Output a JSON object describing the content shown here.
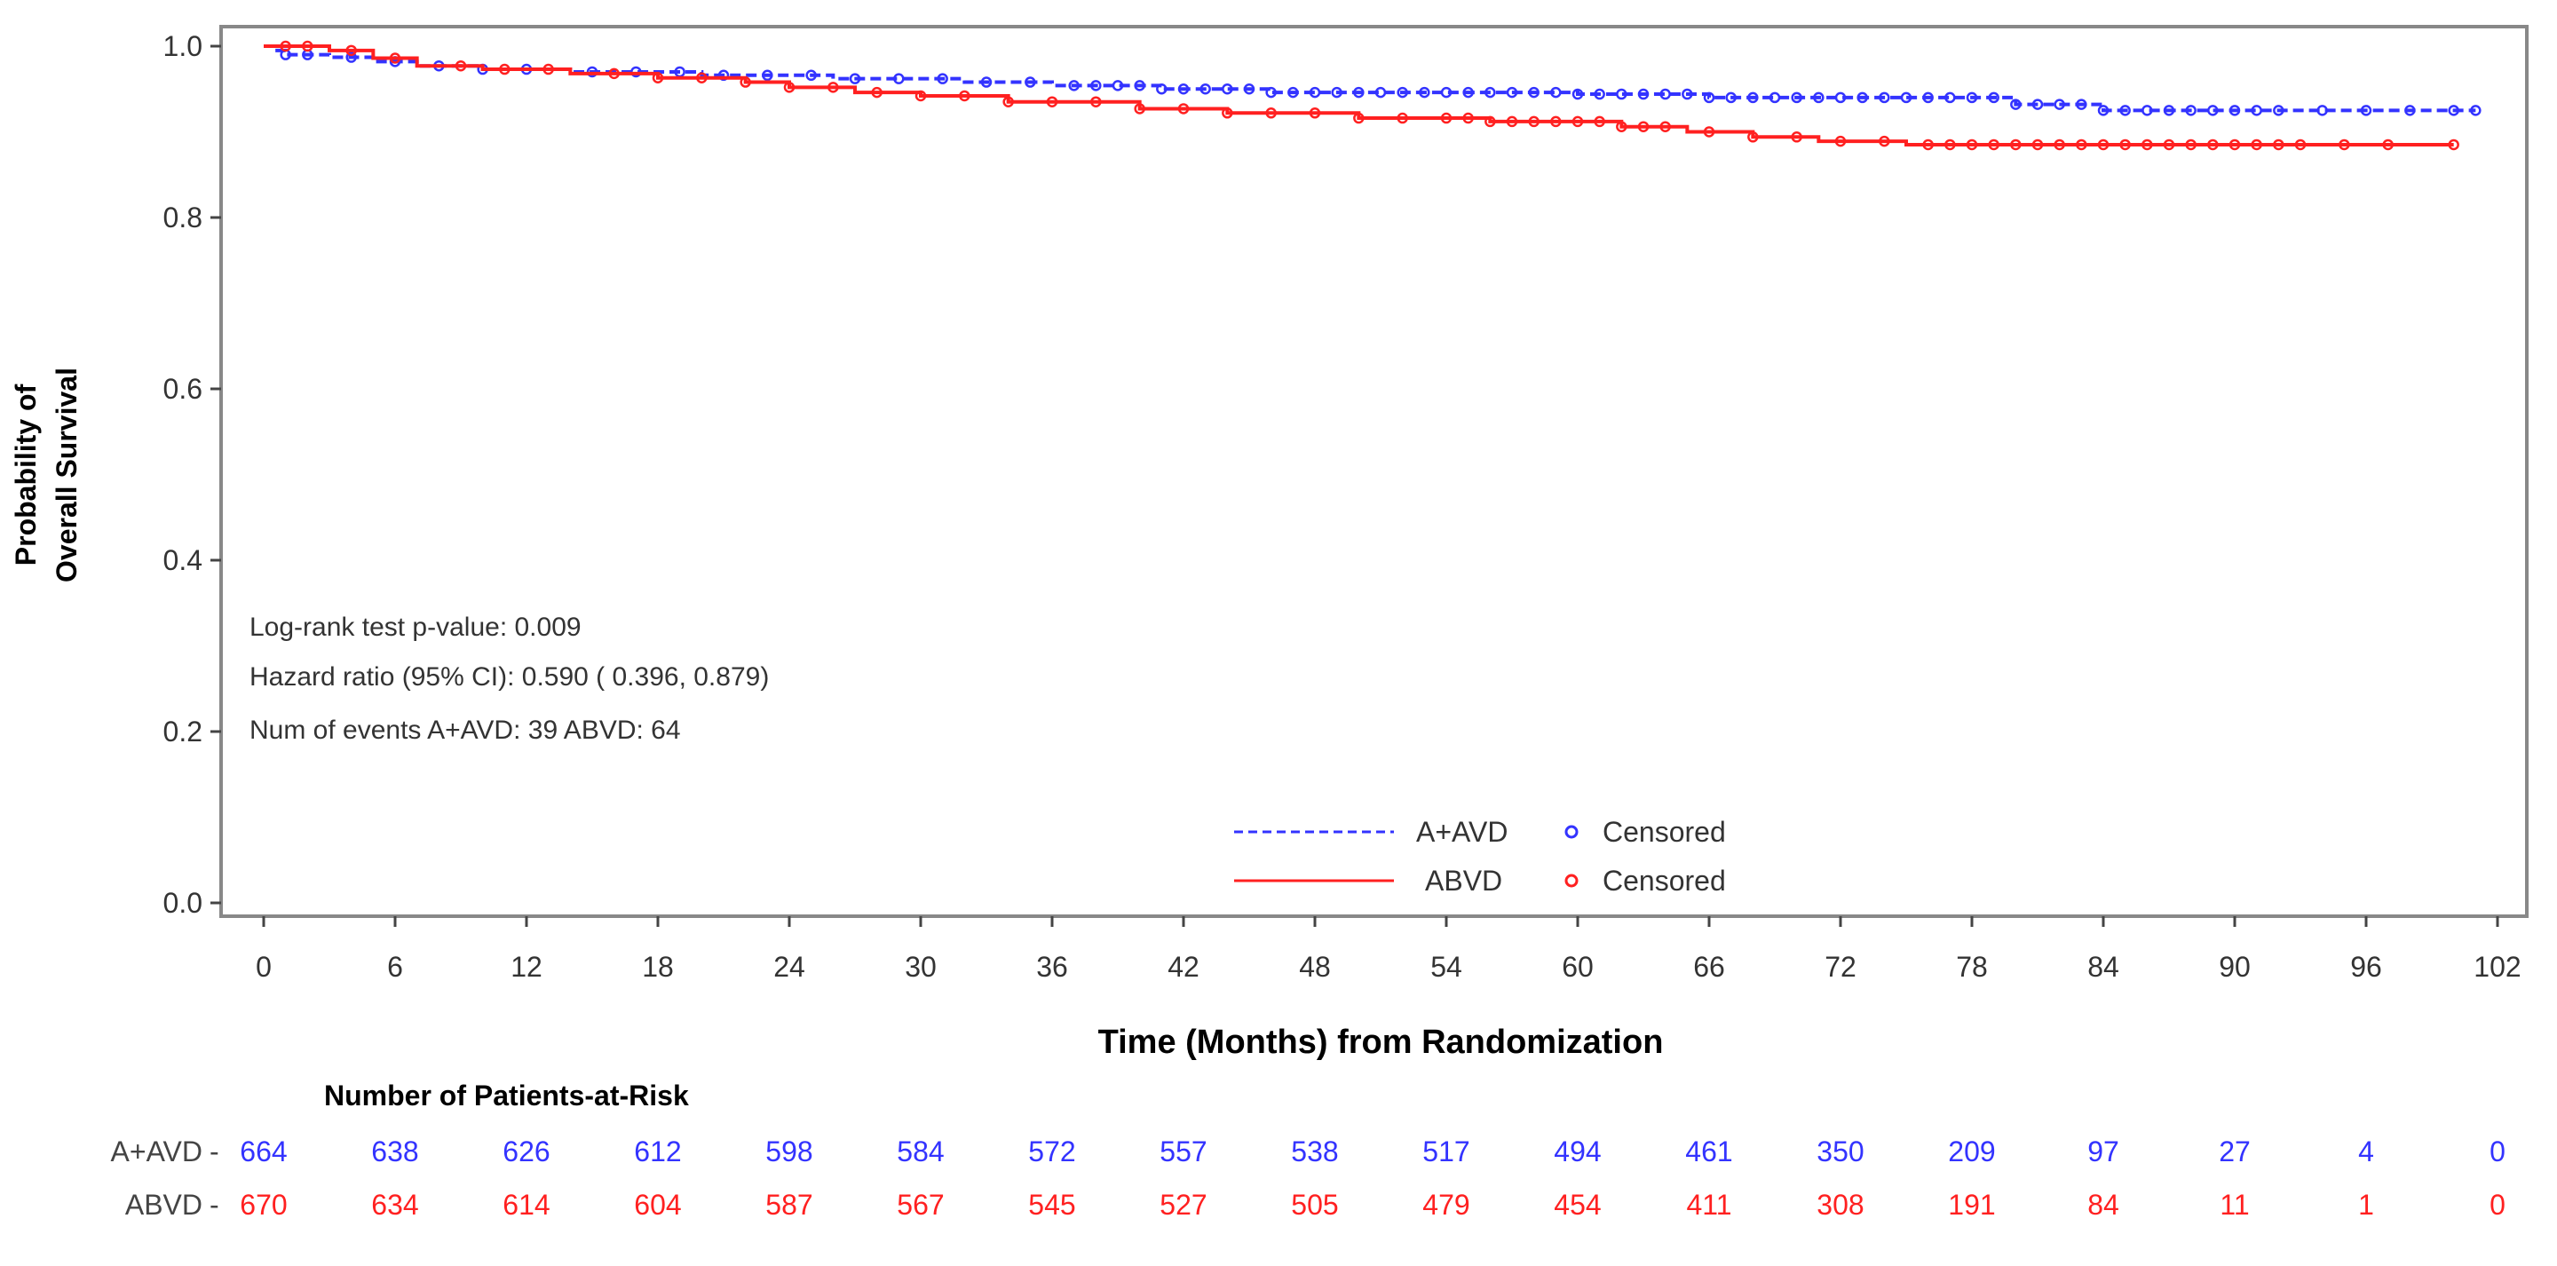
{
  "chart_data": {
    "type": "line",
    "subtype": "kaplan-meier",
    "xlabel": "Time (Months) from Randomization",
    "ylabel_lines": [
      "Probability of",
      "Overall Survival"
    ],
    "xlim": [
      0,
      102
    ],
    "ylim": [
      0,
      1.0
    ],
    "x_ticks": [
      0,
      6,
      12,
      18,
      24,
      30,
      36,
      42,
      48,
      54,
      60,
      66,
      72,
      78,
      84,
      90,
      96,
      102
    ],
    "y_ticks": [
      "0.0",
      "0.2",
      "0.4",
      "0.6",
      "0.8",
      "1.0"
    ],
    "grid": false,
    "legend_placement": "bottom-center",
    "censored_label": "Censored",
    "annotations": [
      "Log-rank test p-value: 0.009",
      "Hazard ratio (95% CI):  0.590 ( 0.396,  0.879)",
      "Num of events  A+AVD: 39  ABVD: 64"
    ],
    "series": [
      {
        "name": "A+AVD",
        "color": "#3333ff",
        "line_style": "dashed",
        "x": [
          0,
          0.5,
          1,
          3,
          5,
          7,
          10,
          14,
          20,
          26,
          32,
          36,
          41,
          46,
          60,
          66,
          80,
          84,
          101
        ],
        "y": [
          1.0,
          0.995,
          0.99,
          0.987,
          0.982,
          0.977,
          0.973,
          0.97,
          0.966,
          0.962,
          0.958,
          0.954,
          0.95,
          0.946,
          0.944,
          0.94,
          0.932,
          0.925,
          0.925
        ],
        "censored_x": [
          1,
          2,
          4,
          6,
          8,
          10,
          12,
          15,
          17,
          19,
          21,
          23,
          25,
          27,
          29,
          31,
          33,
          35,
          37,
          38,
          39,
          40,
          41,
          42,
          43,
          44,
          45,
          46,
          47,
          48,
          49,
          50,
          51,
          52,
          53,
          54,
          55,
          56,
          57,
          58,
          59,
          60,
          61,
          62,
          63,
          64,
          65,
          66,
          67,
          68,
          69,
          70,
          71,
          72,
          73,
          74,
          75,
          76,
          77,
          78,
          79,
          80,
          81,
          82,
          83,
          84,
          85,
          86,
          87,
          88,
          89,
          90,
          91,
          92,
          94,
          96,
          98,
          100,
          101
        ]
      },
      {
        "name": "ABVD",
        "color": "#ff2020",
        "line_style": "solid",
        "x": [
          0,
          3,
          5,
          7,
          10,
          14,
          18,
          22,
          24,
          27,
          30,
          34,
          40,
          44,
          50,
          56,
          62,
          65,
          68,
          71,
          75,
          100
        ],
        "y": [
          1.0,
          0.995,
          0.986,
          0.977,
          0.973,
          0.968,
          0.963,
          0.958,
          0.952,
          0.946,
          0.942,
          0.935,
          0.927,
          0.922,
          0.916,
          0.912,
          0.906,
          0.9,
          0.894,
          0.889,
          0.885,
          0.885
        ],
        "censored_x": [
          1,
          2,
          4,
          6,
          9,
          11,
          13,
          16,
          18,
          20,
          22,
          24,
          26,
          28,
          30,
          32,
          34,
          36,
          38,
          40,
          42,
          44,
          46,
          48,
          50,
          52,
          54,
          55,
          56,
          57,
          58,
          59,
          60,
          61,
          62,
          63,
          64,
          66,
          68,
          70,
          72,
          74,
          76,
          77,
          78,
          79,
          80,
          81,
          82,
          83,
          84,
          85,
          86,
          87,
          88,
          89,
          90,
          91,
          92,
          93,
          95,
          97,
          100
        ]
      }
    ],
    "risk_table": {
      "title": "Number of Patients-at-Risk",
      "rows": [
        {
          "label": "A+AVD",
          "color": "#3333ff",
          "values": [
            "664",
            "638",
            "626",
            "612",
            "598",
            "584",
            "572",
            "557",
            "538",
            "517",
            "494",
            "461",
            "350",
            "209",
            "97",
            "27",
            "4",
            "0"
          ]
        },
        {
          "label": "ABVD",
          "color": "#ff2020",
          "values": [
            "670",
            "634",
            "614",
            "604",
            "587",
            "567",
            "545",
            "527",
            "505",
            "479",
            "454",
            "411",
            "308",
            "191",
            "84",
            "11",
            "1",
            "0"
          ]
        }
      ]
    }
  }
}
